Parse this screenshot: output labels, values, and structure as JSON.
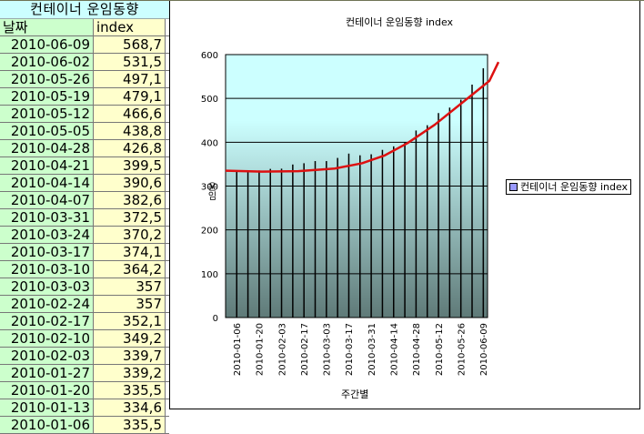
{
  "sheet": {
    "title": "컨테이너 운임동향",
    "headers": [
      "날짜",
      "index"
    ],
    "rows": [
      [
        "2010-06-09",
        "568,7"
      ],
      [
        "2010-06-02",
        "531,5"
      ],
      [
        "2010-05-26",
        "497,1"
      ],
      [
        "2010-05-19",
        "479,1"
      ],
      [
        "2010-05-12",
        "466,6"
      ],
      [
        "2010-05-05",
        "438,8"
      ],
      [
        "2010-04-28",
        "426,8"
      ],
      [
        "2010-04-21",
        "399,5"
      ],
      [
        "2010-04-14",
        "390,6"
      ],
      [
        "2010-04-07",
        "382,6"
      ],
      [
        "2010-03-31",
        "372,5"
      ],
      [
        "2010-03-24",
        "370,2"
      ],
      [
        "2010-03-17",
        "374,1"
      ],
      [
        "2010-03-10",
        "364,2"
      ],
      [
        "2010-03-03",
        "357"
      ],
      [
        "2010-02-24",
        "357"
      ],
      [
        "2010-02-17",
        "352,1"
      ],
      [
        "2010-02-10",
        "349,2"
      ],
      [
        "2010-02-03",
        "339,7"
      ],
      [
        "2010-01-27",
        "339,2"
      ],
      [
        "2010-01-20",
        "335,5"
      ],
      [
        "2010-01-13",
        "334,6"
      ],
      [
        "2010-01-06",
        "335,5"
      ]
    ]
  },
  "chart": {
    "title": "컨테이너 운임동향 index",
    "ylabel": "운임",
    "xlabel": "주간별",
    "legend": "컨테이너 운임동향 index",
    "yticks": [
      "0",
      "100",
      "200",
      "300",
      "400",
      "500",
      "600"
    ]
  },
  "colors": {
    "plot_top": "#ccffff",
    "plot_bottom": "#5f7a78",
    "trend": "#dd1111",
    "legend_swatch": "#9999ff"
  },
  "chart_data": {
    "type": "bar",
    "title": "컨테이너 운임동향 index",
    "xlabel": "주간별",
    "ylabel": "운임",
    "ylim": [
      0,
      600
    ],
    "grid": true,
    "legend_position": "right",
    "categories": [
      "2010-01-06",
      "2010-01-13",
      "2010-01-20",
      "2010-01-27",
      "2010-02-03",
      "2010-02-10",
      "2010-02-17",
      "2010-02-24",
      "2010-03-03",
      "2010-03-10",
      "2010-03-17",
      "2010-03-24",
      "2010-03-31",
      "2010-04-07",
      "2010-04-14",
      "2010-04-21",
      "2010-04-28",
      "2010-05-05",
      "2010-05-12",
      "2010-05-19",
      "2010-05-26",
      "2010-06-02",
      "2010-06-09"
    ],
    "tick_labels": [
      "2010-01-06",
      "2010-01-20",
      "2010-02-03",
      "2010-02-17",
      "2010-03-03",
      "2010-03-17",
      "2010-03-31",
      "2010-04-14",
      "2010-04-28",
      "2010-05-12",
      "2010-05-26",
      "2010-06-09"
    ],
    "series": [
      {
        "name": "컨테이너 운임동향 index",
        "values": [
          335.5,
          334.6,
          335.5,
          339.2,
          339.7,
          349.2,
          352.1,
          357,
          357,
          364.2,
          374.1,
          370.2,
          372.5,
          382.6,
          390.6,
          399.5,
          426.8,
          438.8,
          466.6,
          479.1,
          497.1,
          531.5,
          568.7
        ]
      }
    ],
    "trendline": {
      "type": "polynomial",
      "color": "#dd1111"
    }
  }
}
